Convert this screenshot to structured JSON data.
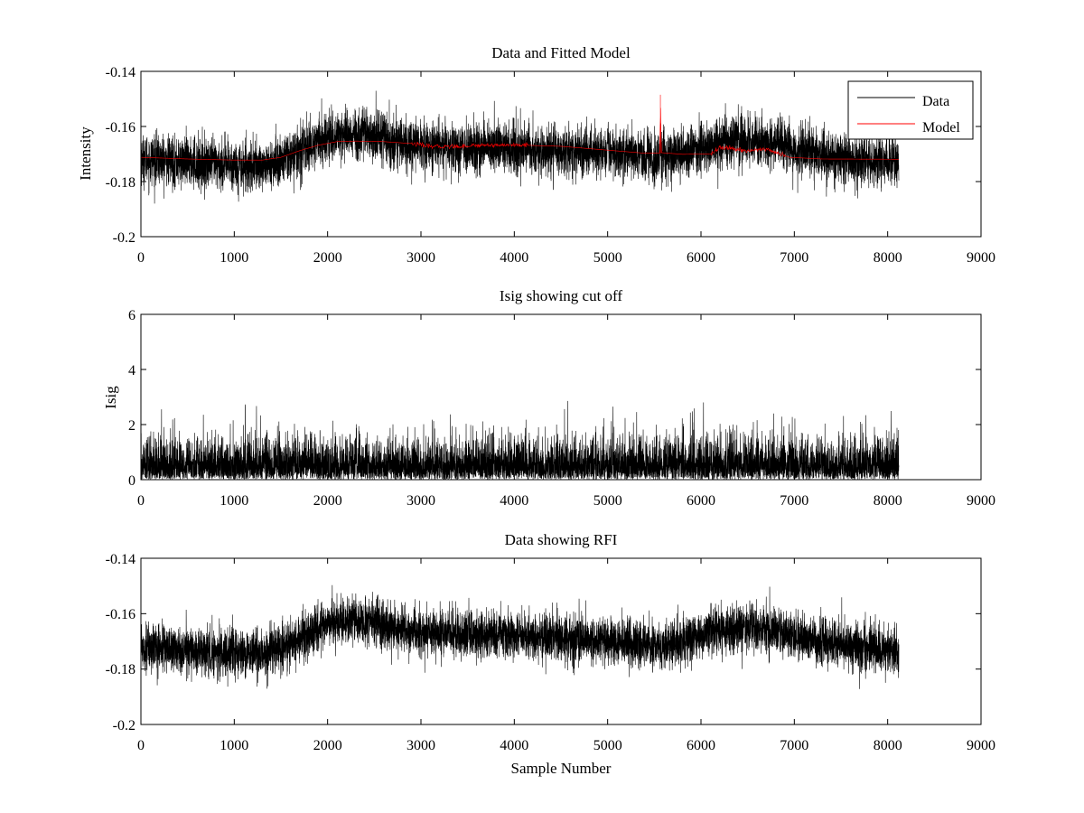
{
  "chart_data": [
    {
      "type": "line",
      "title": "Data and Fitted Model",
      "xlabel": "",
      "ylabel": "Intensity",
      "xlim": [
        0,
        9000
      ],
      "ylim": [
        -0.2,
        -0.14
      ],
      "xticks": [
        "0",
        "1000",
        "2000",
        "3000",
        "4000",
        "5000",
        "6000",
        "7000",
        "8000",
        "9000"
      ],
      "yticks": [
        "-0.14",
        "-0.16",
        "-0.18",
        "-0.2"
      ],
      "grid": false,
      "legend_position": "top-right",
      "series": [
        {
          "name": "Data",
          "color": "#000000",
          "style": "noisy",
          "noise": 0.0045,
          "x_range": [
            0,
            8120
          ],
          "center": [
            [
              0,
              -0.172
            ],
            [
              300,
              -0.1725
            ],
            [
              600,
              -0.1735
            ],
            [
              900,
              -0.174
            ],
            [
              1200,
              -0.1745
            ],
            [
              1350,
              -0.1745
            ],
            [
              1500,
              -0.1725
            ],
            [
              1700,
              -0.169
            ],
            [
              1900,
              -0.1655
            ],
            [
              2100,
              -0.163
            ],
            [
              2300,
              -0.1625
            ],
            [
              2500,
              -0.163
            ],
            [
              2700,
              -0.1655
            ],
            [
              3000,
              -0.167
            ],
            [
              3500,
              -0.1675
            ],
            [
              4000,
              -0.168
            ],
            [
              4500,
              -0.169
            ],
            [
              5000,
              -0.1695
            ],
            [
              5300,
              -0.1705
            ],
            [
              5500,
              -0.1715
            ],
            [
              5700,
              -0.171
            ],
            [
              6000,
              -0.1675
            ],
            [
              6300,
              -0.1655
            ],
            [
              6600,
              -0.1655
            ],
            [
              6800,
              -0.166
            ],
            [
              7000,
              -0.1685
            ],
            [
              7400,
              -0.171
            ],
            [
              7800,
              -0.1725
            ],
            [
              8120,
              -0.1735
            ]
          ]
        },
        {
          "name": "Model",
          "color": "#ff0000",
          "style": "smooth",
          "x_range": [
            0,
            8120
          ],
          "center": [
            [
              0,
              -0.1712
            ],
            [
              500,
              -0.1718
            ],
            [
              1000,
              -0.1722
            ],
            [
              1300,
              -0.1722
            ],
            [
              1500,
              -0.1712
            ],
            [
              1700,
              -0.1688
            ],
            [
              1900,
              -0.1668
            ],
            [
              2100,
              -0.1655
            ],
            [
              2300,
              -0.1653
            ],
            [
              2600,
              -0.1655
            ],
            [
              2900,
              -0.1662
            ],
            [
              3100,
              -0.1673
            ],
            [
              3400,
              -0.1672
            ],
            [
              3700,
              -0.1667
            ],
            [
              4100,
              -0.1668
            ],
            [
              4500,
              -0.1672
            ],
            [
              5000,
              -0.1686
            ],
            [
              5400,
              -0.1697
            ],
            [
              5560,
              -0.1697
            ],
            [
              5565,
              -0.1485
            ],
            [
              5575,
              -0.1695
            ],
            [
              5800,
              -0.1701
            ],
            [
              6100,
              -0.17
            ],
            [
              6200,
              -0.1676
            ],
            [
              6500,
              -0.1688
            ],
            [
              6700,
              -0.1682
            ],
            [
              6950,
              -0.1712
            ],
            [
              7300,
              -0.1718
            ],
            [
              8120,
              -0.1719
            ]
          ]
        }
      ]
    },
    {
      "type": "line",
      "title": "Isig showing cut off",
      "xlabel": "",
      "ylabel": "Isig",
      "xlim": [
        0,
        9000
      ],
      "ylim": [
        0,
        6
      ],
      "xticks": [
        "0",
        "1000",
        "2000",
        "3000",
        "4000",
        "5000",
        "6000",
        "7000",
        "8000",
        "9000"
      ],
      "yticks": [
        "6",
        "4",
        "2",
        "0"
      ],
      "grid": false,
      "series": [
        {
          "color": "#000000",
          "style": "abs-noise",
          "scale": 0.72,
          "max_value": 3.9,
          "x_range": [
            0,
            8120
          ]
        }
      ]
    },
    {
      "type": "line",
      "title": "Data showing RFI",
      "xlabel": "Sample Number",
      "ylabel": "",
      "xlim": [
        0,
        9000
      ],
      "ylim": [
        -0.2,
        -0.14
      ],
      "xticks": [
        "0",
        "1000",
        "2000",
        "3000",
        "4000",
        "5000",
        "6000",
        "7000",
        "8000",
        "9000"
      ],
      "yticks": [
        "-0.14",
        "-0.16",
        "-0.18",
        "-0.2"
      ],
      "grid": false,
      "series": [
        {
          "color": "#000000",
          "style": "noisy",
          "noise": 0.0042,
          "x_range": [
            0,
            8120
          ],
          "center": [
            [
              0,
              -0.172
            ],
            [
              300,
              -0.1725
            ],
            [
              600,
              -0.1735
            ],
            [
              900,
              -0.174
            ],
            [
              1200,
              -0.1745
            ],
            [
              1350,
              -0.1745
            ],
            [
              1500,
              -0.1725
            ],
            [
              1700,
              -0.169
            ],
            [
              1900,
              -0.1655
            ],
            [
              2100,
              -0.163
            ],
            [
              2300,
              -0.1625
            ],
            [
              2500,
              -0.163
            ],
            [
              2700,
              -0.1655
            ],
            [
              3000,
              -0.167
            ],
            [
              3500,
              -0.1675
            ],
            [
              4000,
              -0.168
            ],
            [
              4500,
              -0.169
            ],
            [
              5000,
              -0.1695
            ],
            [
              5300,
              -0.1705
            ],
            [
              5500,
              -0.1715
            ],
            [
              5700,
              -0.171
            ],
            [
              6000,
              -0.1675
            ],
            [
              6300,
              -0.1655
            ],
            [
              6600,
              -0.1655
            ],
            [
              6800,
              -0.166
            ],
            [
              7000,
              -0.1685
            ],
            [
              7400,
              -0.171
            ],
            [
              7800,
              -0.1725
            ],
            [
              8120,
              -0.1735
            ]
          ]
        }
      ]
    }
  ]
}
